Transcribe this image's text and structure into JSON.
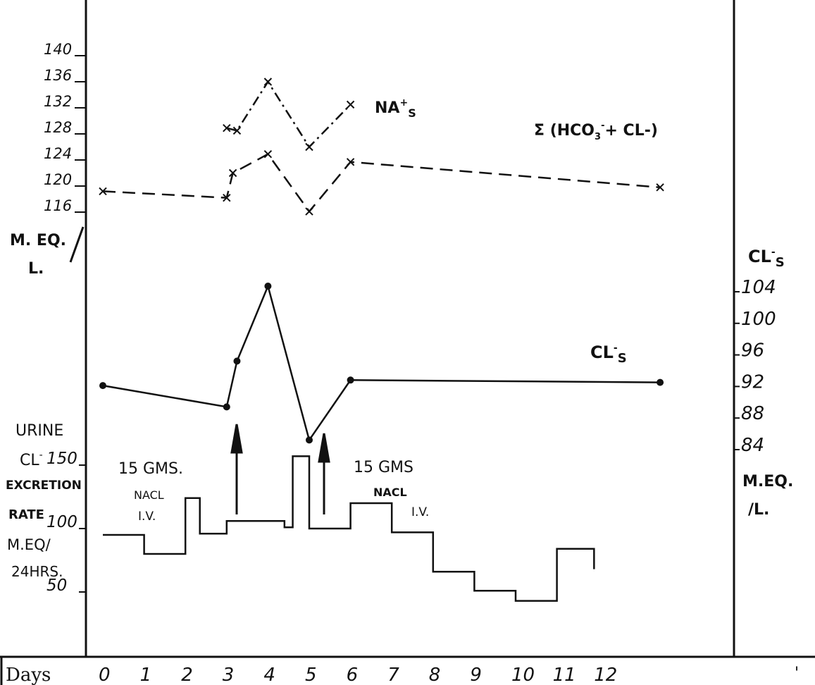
{
  "chart_data": [
    {
      "type": "line",
      "title": "",
      "xlabel": "Days",
      "ylabel_left": "M. EQ./ L.",
      "ylim": [
        112,
        142
      ],
      "yticks": [
        "116",
        "120",
        "124",
        "128",
        "132",
        "136",
        "140"
      ],
      "series": [
        {
          "name": "NA+s",
          "style": "dash-dot",
          "marker": "x",
          "points": [
            [
              3,
              128.9
            ],
            [
              3.25,
              128.5
            ],
            [
              4,
              136
            ],
            [
              5,
              126
            ],
            [
              6,
              132.5
            ]
          ]
        },
        {
          "name": "Σ (HCO3- + CL-)",
          "style": "dash",
          "marker": "x",
          "points": [
            [
              0,
              119.2
            ],
            [
              3,
              118.2
            ],
            [
              3.15,
              122
            ],
            [
              4,
              124.9
            ],
            [
              5,
              116.1
            ],
            [
              6,
              123.7
            ],
            [
              13.5,
              119.8
            ]
          ]
        }
      ]
    },
    {
      "type": "line",
      "ylabel_right": "CL-s  M.EQ. /L.",
      "ylim": [
        82,
        106
      ],
      "yticks": [
        "84",
        "88",
        "92",
        "96",
        "100",
        "104"
      ],
      "series": [
        {
          "name": "CL-s",
          "style": "solid",
          "marker": "dot",
          "points": [
            [
              0,
              91.4
            ],
            [
              3,
              88.7
            ],
            [
              3.25,
              94.5
            ],
            [
              4,
              104
            ],
            [
              5,
              84.5
            ],
            [
              6,
              92.1
            ],
            [
              13.5,
              91.8
            ]
          ]
        }
      ]
    },
    {
      "type": "step",
      "ylabel_left": "URINE CL- EXCRETION RATE M.EQ/ 24HRS.",
      "ylim": [
        0,
        170
      ],
      "yticks": [
        "50",
        "100",
        "150"
      ],
      "series": [
        {
          "name": "Urine CL- excretion rate",
          "steps": [
            [
              0,
              1,
              95
            ],
            [
              1,
              2,
              80
            ],
            [
              2,
              2.35,
              124
            ],
            [
              2.35,
              3,
              96
            ],
            [
              3,
              3.5,
              106
            ],
            [
              3.5,
              4.4,
              106
            ],
            [
              4.4,
              4.6,
              101
            ],
            [
              4.6,
              5,
              157
            ],
            [
              5,
              6,
              100
            ],
            [
              6,
              7,
              120
            ],
            [
              7,
              8,
              97
            ],
            [
              8,
              9,
              66
            ],
            [
              9,
              10,
              51
            ],
            [
              10,
              11,
              43
            ],
            [
              11,
              11.9,
              84
            ]
          ],
          "end_value": 68
        }
      ]
    }
  ],
  "x_axis": {
    "label": "Days",
    "ticks": [
      "0",
      "1",
      "2",
      "3",
      "4",
      "5",
      "6",
      "7",
      "8",
      "9",
      "10",
      "11",
      "12"
    ]
  },
  "annotations": {
    "na_label": "NA",
    "na_sup": "+",
    "na_sub": "S",
    "sigma_label": "Σ (HCO",
    "sigma_sub": "3",
    "sigma_sup": "-",
    "sigma_rest": "+ CL",
    "sigma_close": "-)",
    "cls_mid": "CL",
    "cls_mid_sup": "-",
    "cls_mid_sub": "S",
    "left_unit_1": "M. EQ.",
    "left_unit_2": "L.",
    "right_cls": "CL",
    "right_cls_sup": "-",
    "right_cls_sub": "S",
    "right_unit_1": "M.EQ.",
    "right_unit_2": "/L.",
    "urine_1": "URINE",
    "urine_2": "CL",
    "urine_2_sup": "-",
    "urine_3": "EXCRETION",
    "urine_4": "RATE",
    "urine_5": "M.EQ/",
    "urine_6": "24HRS.",
    "dose1_a": "15 GMS.",
    "dose1_b": "NACL",
    "dose1_c": "I.V.",
    "dose2_a": "15 GMS",
    "dose2_b": "NACL",
    "dose2_c": "I.V.",
    "tick_mark": "'"
  }
}
